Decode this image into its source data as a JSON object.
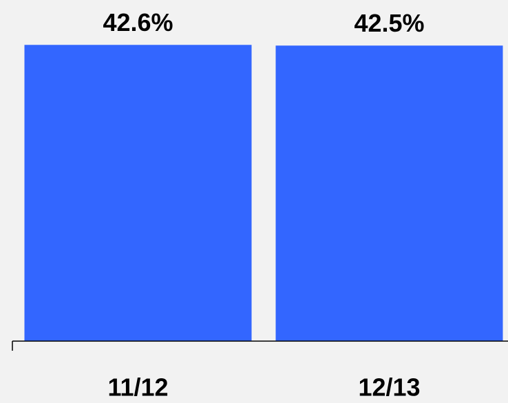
{
  "chart_data": {
    "type": "bar",
    "categories": [
      "11/12",
      "12/13"
    ],
    "values": [
      42.6,
      42.5
    ],
    "value_labels": [
      "42.6%",
      "42.5%"
    ],
    "color": "#3366ff",
    "ylim": [
      0,
      45
    ]
  }
}
